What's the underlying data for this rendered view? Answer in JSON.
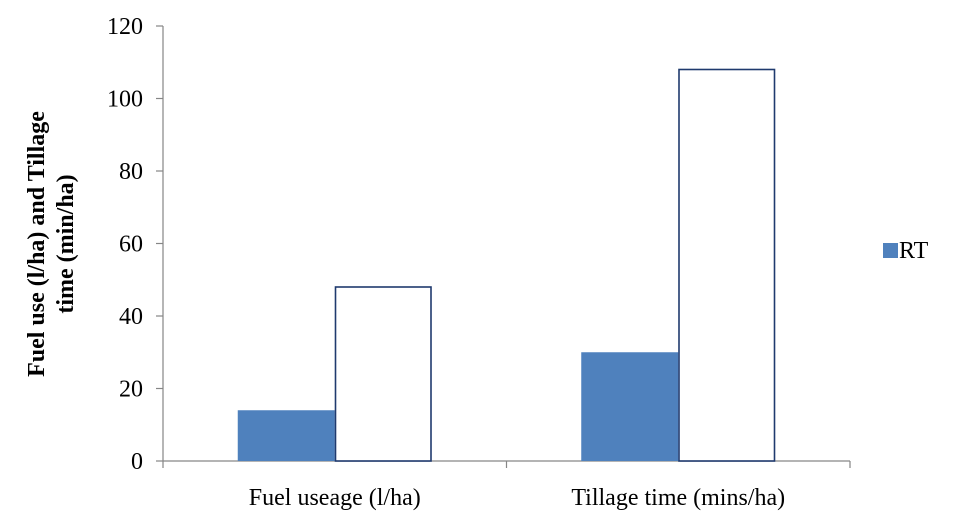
{
  "chart_data": {
    "type": "bar",
    "title": "",
    "xlabel": "",
    "ylabel_lines": [
      "Fuel use (l/ha) and Tillage",
      "time (min/ha)"
    ],
    "categories": [
      "Fuel useage (l/ha)",
      "Tillage time (mins/ha)"
    ],
    "series": [
      {
        "name": "RT",
        "values": [
          14,
          30
        ],
        "color": "#4f81bd",
        "fill": "solid"
      },
      {
        "values": [
          48,
          108
        ],
        "color": "#1f3a6e",
        "fill": "none"
      }
    ],
    "ylim": [
      0,
      120
    ],
    "yticks": [
      0,
      20,
      40,
      60,
      80,
      100,
      120
    ],
    "grid": false,
    "legend_position": "right"
  }
}
